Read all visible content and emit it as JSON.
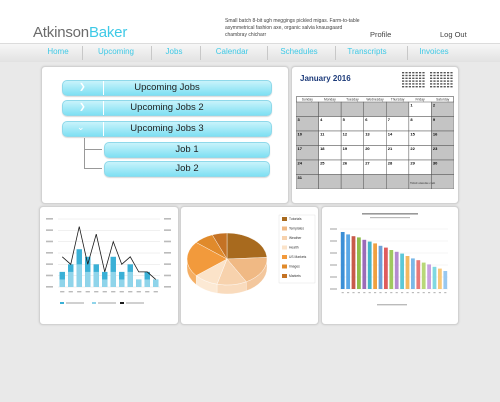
{
  "brand": {
    "part1": "Atkinson",
    "part2": "Baker",
    "accent": "#3ec9e6"
  },
  "tagline": "Small batch 8-bit ugh meggings pickled migas. Farm-to-table asymmetrical fashion axe, organic salvia knausgaard chambray chicharr",
  "top_links": {
    "profile": "Profile",
    "logout": "Log Out"
  },
  "nav": [
    "Home",
    "Upcoming",
    "Jobs",
    "Calendar",
    "Schedules",
    "Transcripts",
    "Invoices"
  ],
  "jobs_panel": {
    "items": [
      {
        "label": "Upcoming Jobs",
        "state": "collapsed"
      },
      {
        "label": "Upcoming Jobs 2",
        "state": "collapsed"
      },
      {
        "label": "Upcoming Jobs 3",
        "state": "expanded"
      }
    ],
    "children": [
      "Job 1",
      "Job 2"
    ]
  },
  "calendar": {
    "title": "January  2016",
    "days": [
      "Sunday",
      "Monday",
      "Tuesday",
      "Wednesday",
      "Thursday",
      "Friday",
      "Saturday"
    ],
    "weeks": [
      [
        "",
        "",
        "",
        "",
        "",
        "1",
        "2"
      ],
      [
        "3",
        "4",
        "5",
        "6",
        "7",
        "8",
        "9"
      ],
      [
        "10",
        "11",
        "12",
        "13",
        "14",
        "15",
        "16"
      ],
      [
        "17",
        "18",
        "19",
        "20",
        "21",
        "22",
        "23"
      ],
      [
        "24",
        "25",
        "26",
        "27",
        "28",
        "29",
        "30"
      ],
      [
        "31",
        "",
        "",
        "",
        "",
        "",
        ""
      ]
    ],
    "footer": "WinCalendar.com"
  },
  "chart_data": [
    {
      "type": "bar",
      "series": [
        {
          "values": [
            2,
            3,
            5,
            4,
            3,
            2,
            4,
            2,
            3,
            1,
            2,
            1
          ]
        },
        {
          "values": [
            1,
            2,
            3,
            2,
            2,
            1,
            2,
            1,
            2,
            1,
            1,
            1
          ]
        },
        {
          "values": [
            4,
            3,
            8,
            3,
            7,
            2,
            6,
            3,
            4,
            2,
            2,
            1
          ]
        }
      ]
    },
    {
      "type": "pie",
      "values": [
        24,
        18,
        12,
        10,
        22,
        8,
        6
      ],
      "legend": [
        "Tutorials",
        "Templates",
        "Weather",
        "Health",
        "US Markets",
        "Images",
        "Markets"
      ]
    },
    {
      "type": "bar",
      "values": [
        9.5,
        9.1,
        8.8,
        8.6,
        8.2,
        7.9,
        7.6,
        7.2,
        6.9,
        6.5,
        6.2,
        5.9,
        5.5,
        5.1,
        4.8,
        4.4,
        4.1,
        3.7,
        3.4,
        3.0
      ]
    }
  ]
}
